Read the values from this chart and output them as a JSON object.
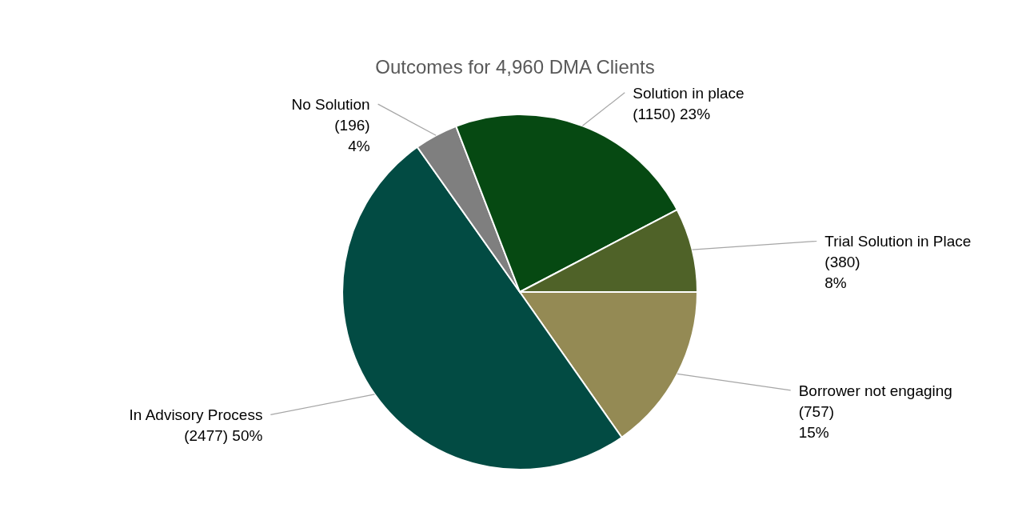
{
  "chart_data": {
    "type": "pie",
    "title": "Outcomes for 4,960 DMA Clients",
    "categories": [
      "Borrower not engaging",
      "In Advisory Process",
      "No Solution",
      "Solution in place",
      "Trial Solution in Place"
    ],
    "values": [
      757,
      2477,
      196,
      1150,
      380
    ],
    "value_labels": [
      "(757)\n15%",
      "(2477) 50%",
      "(196)\n4%",
      "(1150) 23%",
      "(380)\n8%"
    ],
    "colors": [
      "#948a54",
      "#024b43",
      "#7f7f7f",
      "#064912",
      "#4f6228"
    ]
  }
}
